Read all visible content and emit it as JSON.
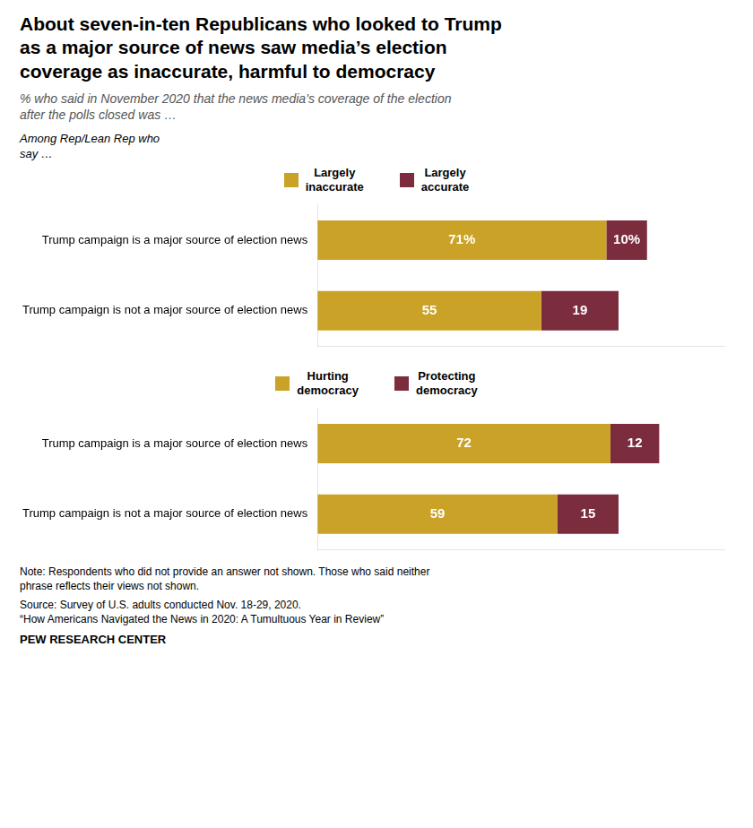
{
  "chart_data": [
    {
      "type": "bar",
      "orientation": "horizontal",
      "stacked": true,
      "title": "About seven-in-ten Republicans who looked to Trump\nas a major source of news saw media’s election\ncoverage as inaccurate, harmful to democracy",
      "subtitle": "% who said in November 2020 that the news media’s coverage of the election\nafter the polls closed was …",
      "annotations": [
        "Among Rep/Lean Rep who\nsay …"
      ],
      "categories": [
        "Trump campaign is a major source of election news",
        "Trump campaign is not a major source of election news"
      ],
      "series": [
        {
          "name": "Largely\ninaccurate",
          "color": "#C9A227",
          "values": [
            71,
            55
          ],
          "value_labels": [
            "71%",
            "55"
          ]
        },
        {
          "name": "Largely\naccurate",
          "color": "#7B2D3E",
          "values": [
            10,
            19
          ],
          "value_labels": [
            "10%",
            "19"
          ]
        }
      ],
      "xlim": [
        0,
        100
      ],
      "data_labels": true,
      "tick_labels": "y",
      "grid": false,
      "legend": "top"
    },
    {
      "type": "bar",
      "orientation": "horizontal",
      "stacked": true,
      "annotations": [
        "Note: Respondents who did not provide an answer not shown. Those who said neither\nphrase reflects their views not shown.",
        "Source: Survey of U.S. adults conducted Nov. 18-29, 2020.\n“How Americans Navigated the News in 2020: A Tumultuous Year in Review”",
        "PEW RESEARCH CENTER"
      ],
      "categories": [
        "Trump campaign is a major source of election news",
        "Trump campaign is not a major source of election news"
      ],
      "series": [
        {
          "name": "Hurting\ndemocracy",
          "color": "#C9A227",
          "values": [
            72,
            59
          ],
          "value_labels": [
            "72",
            "59"
          ]
        },
        {
          "name": "Protecting\ndemocracy",
          "color": "#7B2D3E",
          "values": [
            12,
            15
          ],
          "value_labels": [
            "12",
            "15"
          ]
        }
      ],
      "xlim": [
        0,
        100
      ],
      "data_labels": true,
      "tick_labels": "y",
      "grid": false,
      "legend": "top"
    }
  ]
}
